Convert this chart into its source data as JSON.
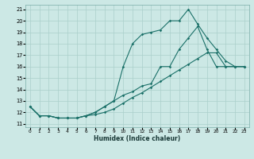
{
  "xlabel": "Humidex (Indice chaleur)",
  "xlim": [
    -0.5,
    23.5
  ],
  "ylim": [
    10.7,
    21.4
  ],
  "xticks": [
    0,
    1,
    2,
    3,
    4,
    5,
    6,
    7,
    8,
    9,
    10,
    11,
    12,
    13,
    14,
    15,
    16,
    17,
    18,
    19,
    20,
    21,
    22,
    23
  ],
  "yticks": [
    11,
    12,
    13,
    14,
    15,
    16,
    17,
    18,
    19,
    20,
    21
  ],
  "bg_color": "#cce8e5",
  "grid_color": "#aacfcb",
  "line_color": "#1a7068",
  "lines": [
    [
      12.5,
      11.7,
      11.7,
      11.5,
      11.5,
      11.5,
      11.7,
      11.8,
      12.0,
      12.3,
      12.8,
      13.3,
      13.7,
      14.2,
      14.7,
      15.2,
      15.7,
      16.2,
      16.7,
      17.2,
      17.2,
      16.0,
      16.0,
      16.0
    ],
    [
      12.5,
      11.7,
      11.7,
      11.5,
      11.5,
      11.5,
      11.7,
      12.0,
      12.5,
      13.0,
      13.5,
      13.8,
      14.3,
      14.5,
      16.0,
      16.0,
      17.5,
      18.5,
      19.5,
      17.5,
      16.0,
      16.0,
      16.0,
      16.0
    ],
    [
      12.5,
      11.7,
      11.7,
      11.5,
      11.5,
      11.5,
      11.7,
      12.0,
      12.5,
      13.0,
      16.0,
      18.0,
      18.8,
      19.0,
      19.2,
      20.0,
      20.0,
      21.0,
      19.7,
      18.5,
      17.5,
      16.5,
      16.0,
      16.0
    ]
  ]
}
